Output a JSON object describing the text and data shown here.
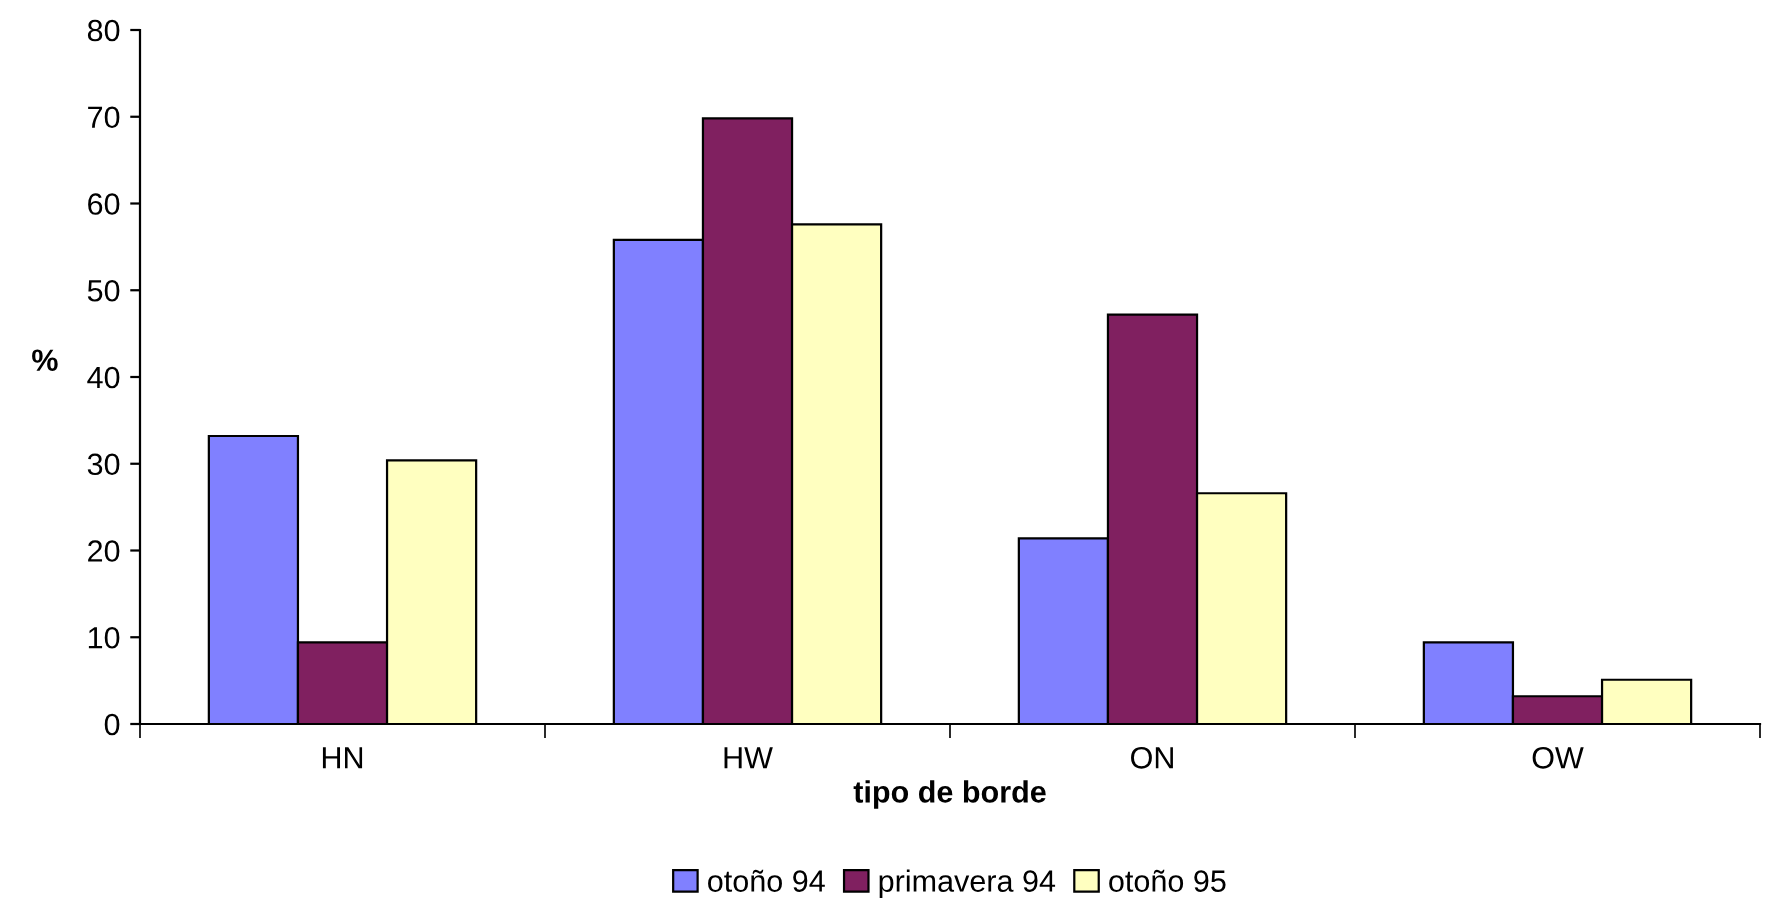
{
  "chart_data": {
    "type": "bar",
    "xlabel": "tipo de borde",
    "ylabel": "%",
    "categories": [
      "HN",
      "HW",
      "ON",
      "OW"
    ],
    "series": [
      {
        "name": "otoño 94",
        "color": "#8080ff",
        "values": [
          33.2,
          55.8,
          21.4,
          9.4
        ]
      },
      {
        "name": "primavera 94",
        "color": "#802060",
        "values": [
          9.4,
          69.8,
          47.2,
          3.2
        ]
      },
      {
        "name": "otoño 95",
        "color": "#ffffc0",
        "values": [
          30.4,
          57.6,
          26.6,
          5.1
        ]
      }
    ],
    "ylim": [
      0,
      80
    ],
    "yticks": [
      0,
      10,
      20,
      30,
      40,
      50,
      60,
      70,
      80
    ],
    "grid": false,
    "legend": "bottom"
  }
}
